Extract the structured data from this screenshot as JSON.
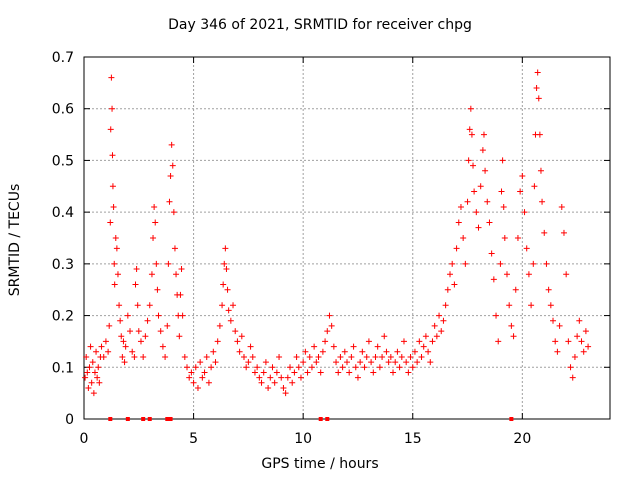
{
  "chart_data": {
    "type": "scatter",
    "title": "Day 346 of 2021, SRMTID for receiver chpg",
    "xlabel": "GPS time / hours",
    "ylabel": "SRMTID / TECUs",
    "xlim": [
      0,
      24
    ],
    "ylim": [
      0,
      0.7
    ],
    "xticks": [
      0,
      5,
      10,
      15,
      20
    ],
    "yticks": [
      0,
      0.1,
      0.2,
      0.3,
      0.4,
      0.5,
      0.6,
      0.7
    ],
    "xtick_labels": [
      "0",
      "5",
      "10",
      "15",
      "20"
    ],
    "ytick_labels": [
      "0",
      "0.1",
      "0.2",
      "0.3",
      "0.4",
      "0.5",
      "0.6",
      "0.7"
    ],
    "grid": true,
    "marker": "+",
    "color": "#ff0000",
    "series": [
      {
        "name": "SRMTID",
        "points": [
          [
            0.05,
            0.08
          ],
          [
            0.1,
            0.12
          ],
          [
            0.15,
            0.09
          ],
          [
            0.2,
            0.06
          ],
          [
            0.25,
            0.1
          ],
          [
            0.3,
            0.14
          ],
          [
            0.35,
            0.07
          ],
          [
            0.4,
            0.11
          ],
          [
            0.45,
            0.05
          ],
          [
            0.5,
            0.09
          ],
          [
            0.55,
            0.13
          ],
          [
            0.6,
            0.08
          ],
          [
            0.65,
            0.1
          ],
          [
            0.7,
            0.07
          ],
          [
            0.75,
            0.12
          ],
          [
            0.8,
            0.14
          ],
          [
            0.9,
            0.12
          ],
          [
            1.0,
            0.15
          ],
          [
            1.1,
            0.13
          ],
          [
            1.15,
            0.18
          ],
          [
            1.2,
            0.38
          ],
          [
            1.22,
            0.56
          ],
          [
            1.25,
            0.66
          ],
          [
            1.28,
            0.6
          ],
          [
            1.3,
            0.51
          ],
          [
            1.32,
            0.45
          ],
          [
            1.35,
            0.41
          ],
          [
            1.38,
            0.3
          ],
          [
            1.4,
            0.26
          ],
          [
            1.45,
            0.35
          ],
          [
            1.5,
            0.33
          ],
          [
            1.55,
            0.28
          ],
          [
            1.6,
            0.22
          ],
          [
            1.65,
            0.19
          ],
          [
            1.7,
            0.16
          ],
          [
            1.75,
            0.12
          ],
          [
            1.8,
            0.15
          ],
          [
            1.85,
            0.11
          ],
          [
            1.9,
            0.14
          ],
          [
            2.0,
            0.2
          ],
          [
            2.1,
            0.17
          ],
          [
            2.2,
            0.13
          ],
          [
            2.3,
            0.12
          ],
          [
            2.35,
            0.26
          ],
          [
            2.4,
            0.29
          ],
          [
            2.45,
            0.22
          ],
          [
            2.5,
            0.17
          ],
          [
            2.6,
            0.15
          ],
          [
            2.7,
            0.12
          ],
          [
            2.8,
            0.16
          ],
          [
            2.9,
            0.19
          ],
          [
            3.0,
            0.22
          ],
          [
            3.1,
            0.28
          ],
          [
            3.15,
            0.35
          ],
          [
            3.2,
            0.41
          ],
          [
            3.25,
            0.38
          ],
          [
            3.3,
            0.3
          ],
          [
            3.35,
            0.25
          ],
          [
            3.4,
            0.2
          ],
          [
            3.5,
            0.17
          ],
          [
            3.6,
            0.14
          ],
          [
            3.7,
            0.12
          ],
          [
            3.8,
            0.18
          ],
          [
            3.85,
            0.3
          ],
          [
            3.9,
            0.42
          ],
          [
            3.95,
            0.47
          ],
          [
            4.0,
            0.53
          ],
          [
            4.05,
            0.49
          ],
          [
            4.1,
            0.4
          ],
          [
            4.15,
            0.33
          ],
          [
            4.2,
            0.28
          ],
          [
            4.25,
            0.24
          ],
          [
            4.3,
            0.2
          ],
          [
            4.35,
            0.16
          ],
          [
            4.4,
            0.24
          ],
          [
            4.45,
            0.29
          ],
          [
            4.5,
            0.2
          ],
          [
            4.6,
            0.12
          ],
          [
            4.7,
            0.1
          ],
          [
            4.8,
            0.08
          ],
          [
            4.9,
            0.09
          ],
          [
            5.0,
            0.07
          ],
          [
            5.1,
            0.1
          ],
          [
            5.2,
            0.06
          ],
          [
            5.3,
            0.11
          ],
          [
            5.4,
            0.08
          ],
          [
            5.5,
            0.09
          ],
          [
            5.6,
            0.12
          ],
          [
            5.7,
            0.07
          ],
          [
            5.8,
            0.1
          ],
          [
            5.9,
            0.13
          ],
          [
            6.0,
            0.11
          ],
          [
            6.1,
            0.15
          ],
          [
            6.2,
            0.18
          ],
          [
            6.3,
            0.22
          ],
          [
            6.35,
            0.26
          ],
          [
            6.4,
            0.3
          ],
          [
            6.45,
            0.33
          ],
          [
            6.5,
            0.29
          ],
          [
            6.55,
            0.25
          ],
          [
            6.6,
            0.21
          ],
          [
            6.7,
            0.19
          ],
          [
            6.8,
            0.22
          ],
          [
            6.9,
            0.17
          ],
          [
            7.0,
            0.15
          ],
          [
            7.1,
            0.13
          ],
          [
            7.2,
            0.16
          ],
          [
            7.3,
            0.12
          ],
          [
            7.4,
            0.1
          ],
          [
            7.5,
            0.11
          ],
          [
            7.6,
            0.14
          ],
          [
            7.7,
            0.12
          ],
          [
            7.8,
            0.09
          ],
          [
            7.9,
            0.1
          ],
          [
            8.0,
            0.08
          ],
          [
            8.1,
            0.07
          ],
          [
            8.2,
            0.09
          ],
          [
            8.3,
            0.11
          ],
          [
            8.4,
            0.06
          ],
          [
            8.5,
            0.08
          ],
          [
            8.6,
            0.1
          ],
          [
            8.7,
            0.07
          ],
          [
            8.8,
            0.09
          ],
          [
            8.9,
            0.12
          ],
          [
            9.0,
            0.08
          ],
          [
            9.1,
            0.06
          ],
          [
            9.2,
            0.05
          ],
          [
            9.3,
            0.08
          ],
          [
            9.4,
            0.1
          ],
          [
            9.5,
            0.07
          ],
          [
            9.6,
            0.09
          ],
          [
            9.7,
            0.12
          ],
          [
            9.8,
            0.1
          ],
          [
            9.9,
            0.08
          ],
          [
            10.0,
            0.11
          ],
          [
            10.1,
            0.13
          ],
          [
            10.2,
            0.09
          ],
          [
            10.3,
            0.12
          ],
          [
            10.4,
            0.1
          ],
          [
            10.5,
            0.14
          ],
          [
            10.6,
            0.11
          ],
          [
            10.7,
            0.12
          ],
          [
            10.8,
            0.09
          ],
          [
            10.9,
            0.13
          ],
          [
            11.0,
            0.15
          ],
          [
            11.1,
            0.17
          ],
          [
            11.2,
            0.2
          ],
          [
            11.3,
            0.18
          ],
          [
            11.4,
            0.14
          ],
          [
            11.5,
            0.11
          ],
          [
            11.6,
            0.09
          ],
          [
            11.7,
            0.12
          ],
          [
            11.8,
            0.1
          ],
          [
            11.9,
            0.13
          ],
          [
            12.0,
            0.11
          ],
          [
            12.1,
            0.09
          ],
          [
            12.2,
            0.12
          ],
          [
            12.3,
            0.14
          ],
          [
            12.4,
            0.1
          ],
          [
            12.5,
            0.08
          ],
          [
            12.6,
            0.11
          ],
          [
            12.7,
            0.13
          ],
          [
            12.8,
            0.1
          ],
          [
            12.9,
            0.12
          ],
          [
            13.0,
            0.15
          ],
          [
            13.1,
            0.11
          ],
          [
            13.2,
            0.09
          ],
          [
            13.3,
            0.12
          ],
          [
            13.4,
            0.14
          ],
          [
            13.5,
            0.1
          ],
          [
            13.6,
            0.12
          ],
          [
            13.7,
            0.16
          ],
          [
            13.8,
            0.13
          ],
          [
            13.9,
            0.11
          ],
          [
            14.0,
            0.12
          ],
          [
            14.1,
            0.09
          ],
          [
            14.2,
            0.11
          ],
          [
            14.3,
            0.13
          ],
          [
            14.4,
            0.1
          ],
          [
            14.5,
            0.12
          ],
          [
            14.6,
            0.15
          ],
          [
            14.7,
            0.11
          ],
          [
            14.8,
            0.09
          ],
          [
            14.9,
            0.12
          ],
          [
            15.0,
            0.1
          ],
          [
            15.1,
            0.13
          ],
          [
            15.2,
            0.11
          ],
          [
            15.3,
            0.15
          ],
          [
            15.4,
            0.12
          ],
          [
            15.5,
            0.14
          ],
          [
            15.6,
            0.16
          ],
          [
            15.7,
            0.13
          ],
          [
            15.8,
            0.11
          ],
          [
            15.9,
            0.15
          ],
          [
            16.0,
            0.18
          ],
          [
            16.1,
            0.16
          ],
          [
            16.2,
            0.2
          ],
          [
            16.3,
            0.17
          ],
          [
            16.4,
            0.19
          ],
          [
            16.5,
            0.22
          ],
          [
            16.6,
            0.25
          ],
          [
            16.7,
            0.28
          ],
          [
            16.8,
            0.3
          ],
          [
            16.9,
            0.26
          ],
          [
            17.0,
            0.33
          ],
          [
            17.1,
            0.38
          ],
          [
            17.2,
            0.41
          ],
          [
            17.3,
            0.35
          ],
          [
            17.4,
            0.3
          ],
          [
            17.5,
            0.42
          ],
          [
            17.55,
            0.5
          ],
          [
            17.6,
            0.56
          ],
          [
            17.65,
            0.6
          ],
          [
            17.7,
            0.55
          ],
          [
            17.75,
            0.49
          ],
          [
            17.8,
            0.44
          ],
          [
            17.9,
            0.4
          ],
          [
            18.0,
            0.37
          ],
          [
            18.1,
            0.45
          ],
          [
            18.2,
            0.52
          ],
          [
            18.25,
            0.55
          ],
          [
            18.3,
            0.48
          ],
          [
            18.4,
            0.42
          ],
          [
            18.5,
            0.38
          ],
          [
            18.6,
            0.32
          ],
          [
            18.7,
            0.27
          ],
          [
            18.8,
            0.2
          ],
          [
            18.9,
            0.15
          ],
          [
            19.0,
            0.3
          ],
          [
            19.05,
            0.44
          ],
          [
            19.1,
            0.5
          ],
          [
            19.15,
            0.41
          ],
          [
            19.2,
            0.35
          ],
          [
            19.3,
            0.28
          ],
          [
            19.4,
            0.22
          ],
          [
            19.5,
            0.18
          ],
          [
            19.6,
            0.16
          ],
          [
            19.7,
            0.25
          ],
          [
            19.8,
            0.35
          ],
          [
            19.9,
            0.44
          ],
          [
            20.0,
            0.47
          ],
          [
            20.1,
            0.4
          ],
          [
            20.2,
            0.33
          ],
          [
            20.3,
            0.28
          ],
          [
            20.4,
            0.22
          ],
          [
            20.5,
            0.3
          ],
          [
            20.55,
            0.45
          ],
          [
            20.6,
            0.55
          ],
          [
            20.65,
            0.64
          ],
          [
            20.7,
            0.67
          ],
          [
            20.75,
            0.62
          ],
          [
            20.8,
            0.55
          ],
          [
            20.85,
            0.48
          ],
          [
            20.9,
            0.42
          ],
          [
            21.0,
            0.36
          ],
          [
            21.1,
            0.3
          ],
          [
            21.2,
            0.25
          ],
          [
            21.3,
            0.22
          ],
          [
            21.4,
            0.19
          ],
          [
            21.5,
            0.15
          ],
          [
            21.6,
            0.13
          ],
          [
            21.7,
            0.18
          ],
          [
            21.8,
            0.41
          ],
          [
            21.9,
            0.36
          ],
          [
            22.0,
            0.28
          ],
          [
            22.1,
            0.15
          ],
          [
            22.2,
            0.1
          ],
          [
            22.3,
            0.08
          ],
          [
            22.4,
            0.12
          ],
          [
            22.5,
            0.16
          ],
          [
            22.6,
            0.19
          ],
          [
            22.7,
            0.15
          ],
          [
            22.8,
            0.13
          ],
          [
            22.9,
            0.17
          ],
          [
            23.0,
            0.14
          ]
        ]
      }
    ],
    "zero_markers_x": [
      1.2,
      2.0,
      2.7,
      3.0,
      3.8,
      3.95,
      10.8,
      11.1,
      19.5
    ]
  }
}
